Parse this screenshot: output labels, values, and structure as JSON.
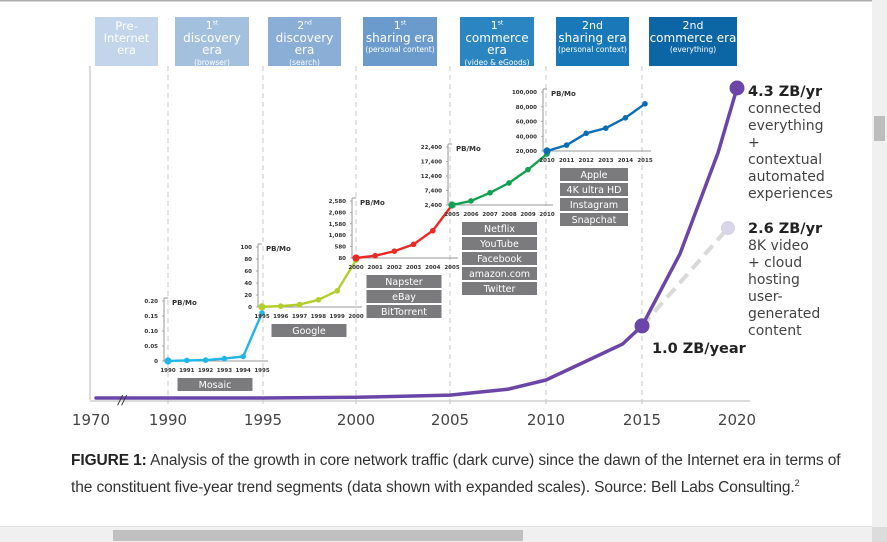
{
  "eras": [
    {
      "line1": "Pre-",
      "line2": "Internet",
      "line3": "era",
      "sub": "",
      "color": "#c2d5ea"
    },
    {
      "line1": "1st",
      "line2": "discovery era",
      "sub": "(browser)",
      "color": "#a3c0de"
    },
    {
      "line1": "2nd",
      "line2": "discovery era",
      "sub": "(search)",
      "color": "#8aaed6"
    },
    {
      "line1": "1st",
      "line2": "sharing era",
      "sub": "(personal content)",
      "color": "#6b9bcd"
    },
    {
      "line1": "1st",
      "line2": "commerce era",
      "sub": "(video & eGoods)",
      "color": "#2a85c1"
    },
    {
      "line1": "2nd",
      "line2": "sharing era",
      "sub": "(personal context)",
      "color": "#1878b8"
    },
    {
      "line1": "2nd",
      "line2": "commerce era",
      "sub": "(everything)",
      "color": "#0c66a6"
    }
  ],
  "chart_data": {
    "type": "line",
    "title": "Growth in core network traffic",
    "main_curve": {
      "name": "core network traffic (dark curve)",
      "color": "#6b46a8",
      "x_ticks": [
        "1970",
        "1990",
        "1995",
        "2000",
        "2005",
        "2010",
        "2015",
        "2020"
      ],
      "axis_break_after": "1970",
      "x": [
        1970,
        1990,
        1995,
        2000,
        2005,
        2008,
        2010,
        2012,
        2014,
        2015,
        2017,
        2019,
        2020
      ],
      "y_zb_per_year": [
        0.0,
        0.0,
        0.0,
        0.01,
        0.04,
        0.12,
        0.25,
        0.5,
        0.75,
        1.0,
        2.0,
        3.4,
        4.3
      ],
      "points": [
        {
          "year": 2015,
          "value": "1.0 ZB/year",
          "label": "1.0 ZB/year"
        },
        {
          "year": 2020,
          "value": "4.3 ZB/yr",
          "label": "4.3 ZB/yr",
          "desc": [
            "connected",
            "everything",
            "+",
            "contextual",
            "automated",
            "experiences"
          ]
        }
      ],
      "alt_projection": {
        "from_year": 2015,
        "to_year": 2020,
        "value": "2.6 ZB/yr",
        "color": "#d9d9d9",
        "dot_color": "#d8d4ea",
        "label": "2.6 ZB/yr",
        "desc": [
          "8K video",
          "+ cloud",
          "hosting",
          "user-",
          "generated",
          "content"
        ]
      }
    },
    "insets": [
      {
        "unit": "PB/Mo",
        "color": "#22b5e8",
        "x": [
          "1990",
          "1991",
          "1992",
          "1993",
          "1994",
          "1995"
        ],
        "yticks": [
          "0.20",
          "0.15",
          "0.10",
          "0.05",
          "0"
        ],
        "ylim": [
          0,
          0.2
        ],
        "values": [
          0.0,
          0.002,
          0.003,
          0.008,
          0.015,
          0.16
        ],
        "apps": [
          "Mosaic"
        ]
      },
      {
        "unit": "PB/Mo",
        "color": "#b3cf2c",
        "x": [
          "1995",
          "1996",
          "1997",
          "1998",
          "1999",
          "2000"
        ],
        "yticks": [
          "100",
          "80",
          "60",
          "40",
          "20",
          "0"
        ],
        "ylim": [
          0,
          100
        ],
        "values": [
          0.2,
          1.5,
          4,
          12,
          27,
          78
        ],
        "apps": [
          "Google"
        ]
      },
      {
        "unit": "PB/Mo",
        "color": "#ea2a25",
        "x": [
          "2000",
          "2001",
          "2002",
          "2003",
          "2004",
          "2005"
        ],
        "yticks": [
          "2,580",
          "2,080",
          "1,580",
          "1,080",
          "580",
          "80"
        ],
        "ylim": [
          80,
          2580
        ],
        "values": [
          80,
          180,
          380,
          680,
          1280,
          2400
        ],
        "apps": [
          "Napster",
          "eBay",
          "BitTorrent"
        ]
      },
      {
        "unit": "PB/Mo",
        "color": "#12a152",
        "x": [
          "2005",
          "2006",
          "2007",
          "2008",
          "2009",
          "2010"
        ],
        "yticks": [
          "22,400",
          "17,400",
          "12,400",
          "7,400",
          "2,400"
        ],
        "ylim": [
          2400,
          22400
        ],
        "values": [
          2400,
          3800,
          6600,
          10000,
          14600,
          20000
        ],
        "apps": [
          "Netflix",
          "YouTube",
          "Facebook",
          "amazon.com",
          "Twitter"
        ]
      },
      {
        "unit": "PB/Mo",
        "color": "#0a6db5",
        "x": [
          "2010",
          "2011",
          "2012",
          "2013",
          "2014",
          "2015"
        ],
        "yticks": [
          "100,000",
          "80,000",
          "60,000",
          "40,000",
          "20,000"
        ],
        "ylim": [
          20000,
          100000
        ],
        "values": [
          20000,
          28000,
          44000,
          51000,
          65000,
          84000
        ],
        "apps": [
          "Apple",
          "4K ultra HD",
          "Instagram",
          "Snapchat"
        ]
      }
    ]
  },
  "caption": {
    "label": "FIGURE 1:",
    "text": " Analysis of the growth in core network traffic (dark curve) since the dawn of the Internet era in terms of the constituent five-year trend segments (data shown with expanded scales). Source: Bell Labs Consulting.",
    "footnote": "2"
  }
}
